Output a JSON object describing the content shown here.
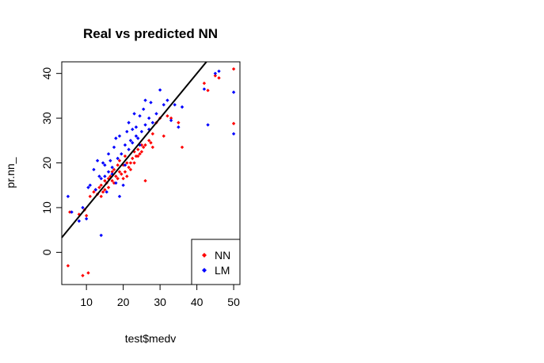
{
  "chart_data": {
    "type": "scatter",
    "title": "Real vs predicted NN",
    "xlabel": "test$medv",
    "ylabel": "pr.nn_",
    "xlim": [
      3.3,
      51.7
    ],
    "ylim": [
      -7.2,
      42.6
    ],
    "x_ticks": [
      "10",
      "20",
      "30",
      "40",
      "50"
    ],
    "y_ticks": [
      "0",
      "10",
      "20",
      "30",
      "40"
    ],
    "x_tick_values": [
      10,
      20,
      30,
      40,
      50
    ],
    "y_tick_values": [
      0,
      10,
      20,
      30,
      40
    ],
    "reference_line": {
      "slope": 1,
      "intercept": 0,
      "color": "#000000"
    },
    "legend": {
      "position": "bottom-right",
      "entries": [
        {
          "label": "NN",
          "color": "#ff0000"
        },
        {
          "label": "LM",
          "color": "#0000ff"
        }
      ]
    },
    "series": [
      {
        "name": "NN",
        "color": "#ff0000",
        "points": [
          [
            5.0,
            -3.0
          ],
          [
            9.0,
            -5.2
          ],
          [
            10.5,
            -4.6
          ],
          [
            5.5,
            9.0
          ],
          [
            8.0,
            8.5
          ],
          [
            9.5,
            9.5
          ],
          [
            10.0,
            8.2
          ],
          [
            11.0,
            12.5
          ],
          [
            12.0,
            13.5
          ],
          [
            13.0,
            13.0
          ],
          [
            13.5,
            14.5
          ],
          [
            14.0,
            15.0
          ],
          [
            14.5,
            13.5
          ],
          [
            15.0,
            16.0
          ],
          [
            15.5,
            15.5
          ],
          [
            16.0,
            14.5
          ],
          [
            16.5,
            17.0
          ],
          [
            17.0,
            16.0
          ],
          [
            17.5,
            18.5
          ],
          [
            18.0,
            17.0
          ],
          [
            18.5,
            16.5
          ],
          [
            19.0,
            18.0
          ],
          [
            19.5,
            17.5
          ],
          [
            20.0,
            19.5
          ],
          [
            20.5,
            18.0
          ],
          [
            21.0,
            17.0
          ],
          [
            21.5,
            19.0
          ],
          [
            22.0,
            20.0
          ],
          [
            22.5,
            21.0
          ],
          [
            23.0,
            22.5
          ],
          [
            23.5,
            21.5
          ],
          [
            24.0,
            23.0
          ],
          [
            24.5,
            22.0
          ],
          [
            25.0,
            24.0
          ],
          [
            25.5,
            23.5
          ],
          [
            26.0,
            16.0
          ],
          [
            27.0,
            25.0
          ],
          [
            27.5,
            24.5
          ],
          [
            28.0,
            26.5
          ],
          [
            29.0,
            29.0
          ],
          [
            30.0,
            30.0
          ],
          [
            31.0,
            26.0
          ],
          [
            32.0,
            30.5
          ],
          [
            33.0,
            30.0
          ],
          [
            35.0,
            29.0
          ],
          [
            36.0,
            23.5
          ],
          [
            42.0,
            37.8
          ],
          [
            43.0,
            36.2
          ],
          [
            45.0,
            39.5
          ],
          [
            46.0,
            39.0
          ],
          [
            50.0,
            41.0
          ],
          [
            50.0,
            28.8
          ],
          [
            16.0,
            16.5
          ],
          [
            17.0,
            18.0
          ],
          [
            18.5,
            19.5
          ],
          [
            19.0,
            20.5
          ],
          [
            20.0,
            16.5
          ],
          [
            21.0,
            20.0
          ],
          [
            22.0,
            18.5
          ],
          [
            23.0,
            20.0
          ],
          [
            24.0,
            21.5
          ],
          [
            25.0,
            22.5
          ],
          [
            26.0,
            24.0
          ],
          [
            28.0,
            23.5
          ],
          [
            20.5,
            21.5
          ],
          [
            14.0,
            12.5
          ],
          [
            12.5,
            14.0
          ],
          [
            15.0,
            14.0
          ],
          [
            17.5,
            15.5
          ]
        ]
      },
      {
        "name": "LM",
        "color": "#0000ff",
        "points": [
          [
            5.0,
            12.5
          ],
          [
            6.0,
            9.0
          ],
          [
            8.0,
            7.0
          ],
          [
            9.0,
            10.0
          ],
          [
            10.0,
            7.5
          ],
          [
            10.5,
            14.5
          ],
          [
            11.0,
            15.0
          ],
          [
            12.0,
            18.5
          ],
          [
            12.5,
            14.0
          ],
          [
            13.0,
            20.5
          ],
          [
            13.5,
            17.0
          ],
          [
            14.0,
            3.8
          ],
          [
            14.5,
            20.0
          ],
          [
            15.0,
            17.0
          ],
          [
            15.5,
            13.5
          ],
          [
            16.0,
            22.0
          ],
          [
            16.5,
            20.5
          ],
          [
            17.0,
            19.0
          ],
          [
            17.5,
            23.5
          ],
          [
            18.0,
            25.5
          ],
          [
            18.5,
            21.0
          ],
          [
            19.0,
            26.0
          ],
          [
            19.5,
            22.0
          ],
          [
            20.0,
            15.0
          ],
          [
            20.5,
            24.0
          ],
          [
            21.0,
            27.0
          ],
          [
            21.5,
            29.0
          ],
          [
            22.0,
            25.0
          ],
          [
            22.5,
            24.5
          ],
          [
            23.0,
            31.0
          ],
          [
            23.5,
            28.0
          ],
          [
            24.0,
            25.5
          ],
          [
            24.5,
            30.5
          ],
          [
            25.0,
            27.0
          ],
          [
            25.5,
            32.0
          ],
          [
            26.0,
            34.0
          ],
          [
            27.0,
            30.0
          ],
          [
            27.5,
            33.5
          ],
          [
            28.0,
            29.0
          ],
          [
            29.0,
            31.0
          ],
          [
            30.0,
            36.3
          ],
          [
            31.0,
            33.0
          ],
          [
            32.0,
            34.0
          ],
          [
            33.0,
            29.5
          ],
          [
            34.0,
            33.0
          ],
          [
            35.0,
            28.0
          ],
          [
            36.0,
            32.5
          ],
          [
            42.0,
            36.5
          ],
          [
            43.0,
            28.5
          ],
          [
            45.0,
            40.0
          ],
          [
            46.0,
            40.5
          ],
          [
            50.0,
            35.8
          ],
          [
            50.0,
            26.5
          ],
          [
            17.0,
            17.5
          ],
          [
            18.0,
            15.5
          ],
          [
            19.0,
            12.5
          ],
          [
            20.5,
            19.5
          ],
          [
            21.5,
            23.0
          ],
          [
            22.5,
            27.5
          ],
          [
            23.5,
            26.0
          ],
          [
            24.5,
            24.0
          ],
          [
            26.0,
            28.5
          ],
          [
            27.0,
            27.5
          ],
          [
            15.0,
            19.5
          ],
          [
            16.0,
            18.0
          ],
          [
            14.0,
            16.5
          ]
        ]
      }
    ]
  }
}
